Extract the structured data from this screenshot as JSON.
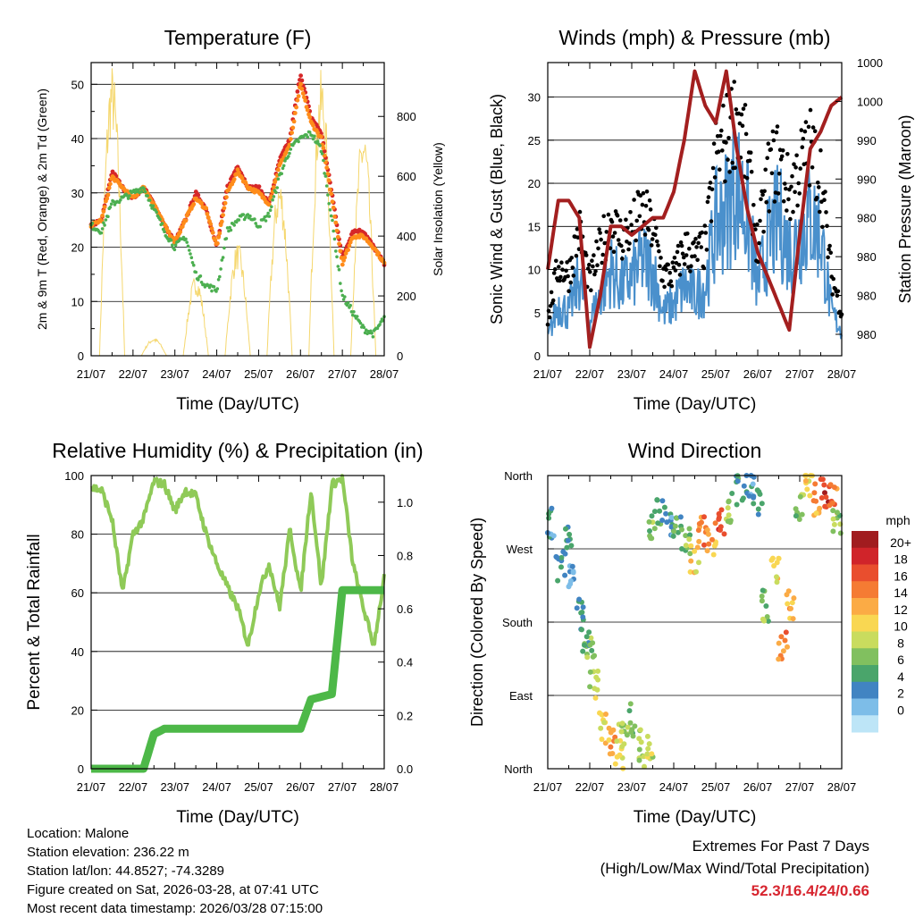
{
  "chart_data": [
    {
      "type": "line",
      "title": "Temperature (F)",
      "xlabel": "Time (Day/UTC)",
      "ylabel": "2m & 9m T (Red, Orange) & 2m Td (Green)",
      "ylabel_right": "Solar Insolation (Yellow)",
      "xticks": [
        "21/07",
        "22/07",
        "23/07",
        "24/07",
        "25/07",
        "26/07",
        "27/07",
        "28/07"
      ],
      "ylim": [
        0,
        54
      ],
      "yticks": [
        0,
        10,
        20,
        30,
        40,
        50
      ],
      "ylim_right": [
        0,
        980
      ],
      "yticks_right": [
        0,
        200,
        400,
        600,
        800
      ],
      "x": [
        0,
        0.25,
        0.5,
        0.75,
        1,
        1.25,
        1.5,
        1.75,
        2,
        2.25,
        2.5,
        2.75,
        3,
        3.25,
        3.5,
        3.75,
        4,
        4.25,
        4.5,
        4.75,
        5,
        5.25,
        5.5,
        5.75,
        6,
        6.25,
        6.5,
        6.75,
        7
      ],
      "series": [
        {
          "name": "2m T",
          "color": "#d62728",
          "values": [
            24,
            25,
            34,
            31,
            29,
            31,
            28,
            24,
            21,
            25,
            30,
            27,
            20,
            31,
            35,
            31,
            31,
            28,
            36,
            40,
            52,
            44,
            41,
            30,
            18,
            23,
            23,
            20,
            17
          ]
        },
        {
          "name": "9m T",
          "color": "#ff8c1a",
          "values": [
            24,
            25,
            33,
            31,
            29,
            31,
            28,
            24,
            21,
            25,
            29,
            27,
            20,
            30,
            34,
            31,
            30,
            28,
            35,
            39,
            50,
            43,
            40,
            29,
            17,
            22,
            22,
            20,
            17
          ]
        },
        {
          "name": "2m Td",
          "color": "#4caf50",
          "values": [
            24,
            23,
            28,
            29,
            30,
            31,
            27,
            23,
            20,
            22,
            15,
            13,
            12,
            23,
            25,
            26,
            24,
            26,
            33,
            38,
            40,
            41,
            38,
            25,
            11,
            8,
            5,
            4,
            7
          ]
        },
        {
          "name": "Solar Insolation",
          "color": "#f5d76e",
          "axis": "right",
          "peaks": [
            [
              0.5,
              980
            ],
            [
              1.5,
              60
            ],
            [
              2.5,
              270
            ],
            [
              3.5,
              380
            ],
            [
              4.5,
              600
            ],
            [
              5.5,
              960
            ],
            [
              6.5,
              780
            ]
          ]
        }
      ]
    },
    {
      "type": "line",
      "title": "Winds (mph) & Pressure (mb)",
      "xlabel": "Time (Day/UTC)",
      "ylabel": "Sonic Wind & Gust (Blue, Black)",
      "ylabel_right": "Station Pressure (Maroon)",
      "xticks": [
        "21/07",
        "22/07",
        "23/07",
        "24/07",
        "25/07",
        "26/07",
        "27/07",
        "28/07"
      ],
      "ylim": [
        0,
        34
      ],
      "yticks": [
        0,
        5,
        10,
        15,
        20,
        25,
        30
      ],
      "yticks_right": [
        "980",
        "980",
        "980",
        "980",
        "990",
        "990",
        "1000",
        "1000"
      ],
      "x": [
        0,
        0.25,
        0.5,
        0.75,
        1,
        1.25,
        1.5,
        1.75,
        2,
        2.25,
        2.5,
        2.75,
        3,
        3.25,
        3.5,
        3.75,
        4,
        4.25,
        4.5,
        4.75,
        5,
        5.25,
        5.5,
        5.75,
        6,
        6.25,
        6.5,
        6.75,
        7
      ],
      "series": [
        {
          "name": "Sonic Wind",
          "color": "#4a90cc",
          "values": [
            2,
            6,
            5,
            9,
            4,
            7,
            10,
            8,
            9,
            11,
            10,
            5,
            6,
            8,
            7,
            8,
            15,
            17,
            20,
            16,
            8,
            13,
            16,
            12,
            14,
            16,
            14,
            5,
            3
          ]
        },
        {
          "name": "Gust",
          "color": "#000000",
          "values": [
            4,
            10,
            9,
            14,
            8,
            12,
            15,
            13,
            14,
            16,
            14,
            9,
            9,
            12,
            11,
            12,
            22,
            24,
            27,
            22,
            12,
            20,
            22,
            18,
            21,
            23,
            20,
            9,
            5
          ]
        },
        {
          "name": "Station Pressure",
          "color": "#a31f1f",
          "values": [
            10,
            18,
            18,
            16,
            1,
            7,
            15,
            15,
            14,
            15,
            16,
            16,
            19,
            25,
            33,
            29,
            27,
            33,
            24,
            17,
            12,
            9,
            6,
            3,
            14,
            24,
            26,
            29,
            30
          ]
        }
      ]
    },
    {
      "type": "line",
      "title": "Relative Humidity (%) & Precipitation (in)",
      "xlabel": "Time (Day/UTC)",
      "ylabel": "Percent & Total Rainfall",
      "xticks": [
        "21/07",
        "22/07",
        "23/07",
        "24/07",
        "25/07",
        "26/07",
        "27/07",
        "28/07"
      ],
      "ylim": [
        0,
        100
      ],
      "yticks": [
        0,
        20,
        40,
        60,
        80,
        100
      ],
      "ylim_right": [
        0,
        1.1
      ],
      "yticks_right": [
        "0.0",
        "0.2",
        "0.4",
        "0.6",
        "0.8",
        "1.0"
      ],
      "x": [
        0,
        0.25,
        0.5,
        0.75,
        1,
        1.25,
        1.5,
        1.75,
        2,
        2.25,
        2.5,
        2.75,
        3,
        3.25,
        3.5,
        3.75,
        4,
        4.25,
        4.5,
        4.75,
        5,
        5.25,
        5.5,
        5.75,
        6,
        6.25,
        6.5,
        6.75,
        7
      ],
      "series": [
        {
          "name": "Relative Humidity",
          "color": "#8fca58",
          "values": [
            96,
            95,
            85,
            60,
            80,
            85,
            98,
            97,
            88,
            95,
            93,
            80,
            70,
            62,
            55,
            42,
            60,
            70,
            55,
            82,
            60,
            95,
            62,
            97,
            99,
            70,
            55,
            42,
            65
          ]
        },
        {
          "name": "Total Precipitation",
          "color": "#4db848",
          "axis": "right",
          "values": [
            0,
            0,
            0,
            0,
            0,
            0,
            0.13,
            0.15,
            0.15,
            0.15,
            0.15,
            0.15,
            0.15,
            0.15,
            0.15,
            0.15,
            0.15,
            0.15,
            0.15,
            0.15,
            0.15,
            0.26,
            0.27,
            0.28,
            0.67,
            0.67,
            0.67,
            0.67,
            0.67
          ]
        }
      ]
    },
    {
      "type": "scatter",
      "title": "Wind Direction",
      "xlabel": "Time (Day/UTC)",
      "ylabel": "Direction (Colored By Speed)",
      "xticks": [
        "21/07",
        "22/07",
        "23/07",
        "24/07",
        "25/07",
        "26/07",
        "27/07",
        "28/07"
      ],
      "yticks": [
        "North",
        "East",
        "South",
        "West",
        "North"
      ],
      "ylim": [
        0,
        360
      ],
      "colorbar": {
        "title": "mph",
        "labels": [
          "20+",
          "18",
          "16",
          "14",
          "12",
          "10",
          "8",
          "6",
          "4",
          "2",
          "0"
        ],
        "colors": [
          "#a11c1f",
          "#d0242a",
          "#e94e2e",
          "#f57b33",
          "#fbab45",
          "#f9d752",
          "#c9dc5e",
          "#81c05f",
          "#4aa56b",
          "#4184c2",
          "#7dbde8",
          "#bde5f7"
        ]
      },
      "x": [
        0.1,
        0.3,
        0.5,
        0.6,
        0.8,
        0.9,
        1.0,
        1.1,
        1.3,
        1.5,
        1.7,
        1.8,
        2.0,
        2.2,
        2.4,
        2.5,
        2.7,
        2.9,
        3.1,
        3.3,
        3.5,
        3.7,
        3.9,
        4.1,
        4.3,
        4.6,
        4.8,
        5.0,
        5.2,
        5.4,
        5.6,
        5.8,
        6.0,
        6.2,
        6.4,
        6.6,
        6.8,
        6.9
      ],
      "dir": [
        300,
        250,
        280,
        230,
        200,
        160,
        150,
        100,
        50,
        30,
        20,
        40,
        60,
        30,
        20,
        300,
        320,
        300,
        290,
        280,
        260,
        290,
        280,
        300,
        320,
        340,
        350,
        330,
        200,
        240,
        150,
        200,
        320,
        350,
        330,
        340,
        330,
        300
      ],
      "speed": [
        4,
        5,
        6,
        3,
        5,
        6,
        8,
        10,
        12,
        14,
        11,
        9,
        8,
        9,
        10,
        8,
        6,
        4,
        6,
        8,
        12,
        16,
        14,
        18,
        8,
        6,
        4,
        5,
        8,
        12,
        16,
        14,
        8,
        12,
        14,
        20,
        16,
        8
      ]
    }
  ],
  "footer": {
    "location": "Location: Malone",
    "elevation": "Station elevation: 236.22 m",
    "latlon": "Station lat/lon: 44.8527; -74.3289",
    "created": "Figure created on Sat, 2026-03-28, at 07:41 UTC",
    "latest": "Most recent data timestamp: 2026/03/28 07:15:00"
  },
  "extremes": {
    "title": "Extremes For Past 7 Days",
    "subtitle": "(High/Low/Max Wind/Total Precipitation)",
    "values": "52.3/16.4/24/0.66"
  }
}
